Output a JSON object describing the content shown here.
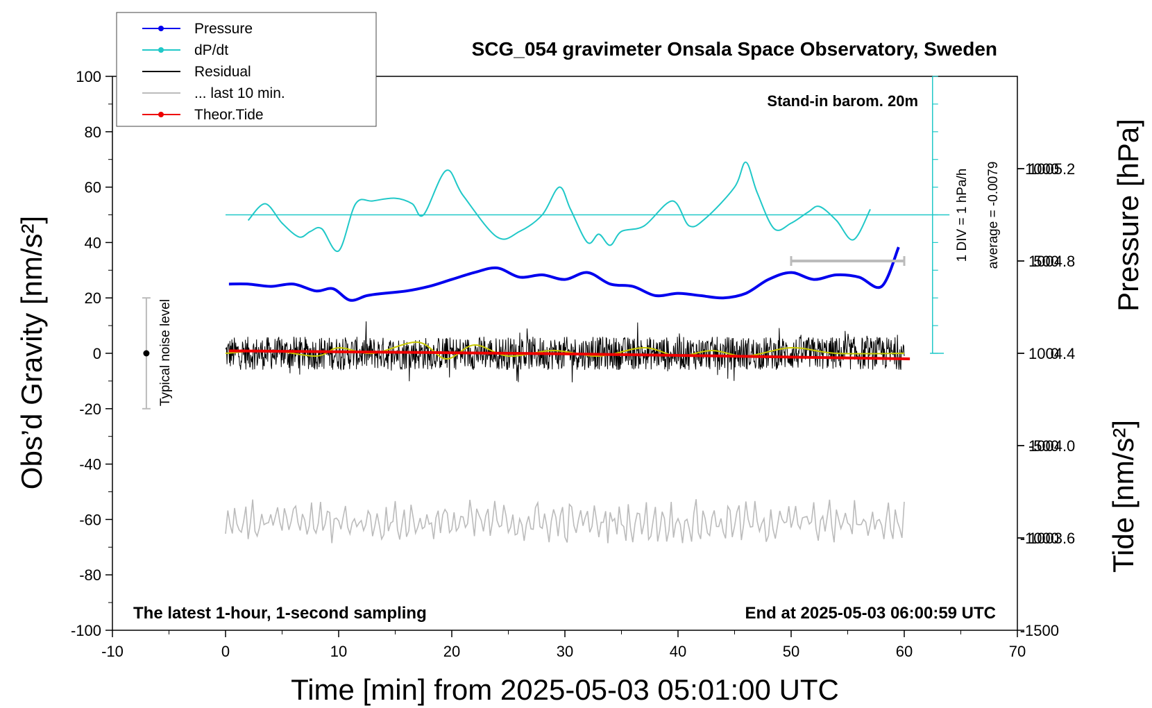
{
  "chart_data": {
    "type": "line",
    "title": "SCG_054 gravimeter Onsala Space Observatory, Sweden",
    "note_top_right": "Stand-in barom. 20m",
    "note_bottom_left": "The latest 1-hour, 1-second sampling",
    "note_bottom_right": "End at 2025-05-03 06:00:59 UTC",
    "xlabel": "Time [min] from 2025-05-03 05:01:00 UTC",
    "ylabel": "Obs’d Gravity [nm/s²]",
    "ylabel_right_top": "Pressure [hPa]",
    "ylabel_right_bottom": "Tide [nm/s²]",
    "xlim": [
      -10,
      70
    ],
    "ylim": [
      -100,
      100
    ],
    "pressure_lim": [
      1003.2,
      1005.6
    ],
    "tide_lim": [
      -1500,
      1500
    ],
    "x_ticks": [
      "-10",
      "0",
      "10",
      "20",
      "30",
      "40",
      "50",
      "60",
      "70"
    ],
    "y_ticks": [
      "-100",
      "-80",
      "-60",
      "-40",
      "-20",
      "0",
      "20",
      "40",
      "60",
      "80",
      "100"
    ],
    "pressure_ticks": [
      "1003.6",
      "1004.0",
      "1004.4",
      "1004.8",
      "1005.2"
    ],
    "tide_ticks": [
      "-1500",
      "-1000",
      "-500",
      "0",
      "500",
      "1000"
    ],
    "dpdt_scale_label": "1 DIV = 1 hPa/h",
    "dpdt_average_label": "average = -0.0079",
    "noise_label": "Typical noise level",
    "legend": {
      "position": "top-left",
      "entries": [
        {
          "name": "Pressure",
          "color": "#0000ee",
          "marker": true
        },
        {
          "name": "dP/dt",
          "color": "#20c8c8",
          "marker": true
        },
        {
          "name": "Residual",
          "color": "#000000",
          "marker": false
        },
        {
          "name": "... last 10 min.",
          "color": "#bbbbbb",
          "marker": false
        },
        {
          "name": "Theor.Tide",
          "color": "#ee0000",
          "marker": true
        }
      ]
    },
    "series": [
      {
        "name": "Pressure",
        "color": "#0000ee",
        "axis": "pressure",
        "x": [
          0.3,
          2,
          4,
          6,
          8,
          9.5,
          11,
          12.5,
          14,
          16,
          18,
          20,
          22,
          24,
          26,
          28,
          30,
          32,
          34,
          36,
          38,
          40,
          42,
          44,
          46,
          48,
          50,
          52,
          54,
          56,
          58,
          59.5
        ],
        "y": [
          1004.7,
          1004.7,
          1004.69,
          1004.7,
          1004.67,
          1004.68,
          1004.63,
          1004.65,
          1004.66,
          1004.67,
          1004.69,
          1004.72,
          1004.75,
          1004.77,
          1004.73,
          1004.74,
          1004.72,
          1004.75,
          1004.7,
          1004.69,
          1004.65,
          1004.66,
          1004.65,
          1004.64,
          1004.66,
          1004.72,
          1004.75,
          1004.72,
          1004.74,
          1004.73,
          1004.69,
          1004.86
        ]
      },
      {
        "name": "dP/dt",
        "color": "#20c8c8",
        "axis": "gravity",
        "x": [
          2,
          3.5,
          5,
          6.5,
          7.5,
          8.5,
          10,
          11.5,
          13,
          15,
          16.5,
          17.5,
          19.5,
          21,
          24,
          26,
          28,
          29.5,
          30.5,
          32,
          33,
          34,
          35,
          37,
          39.5,
          41,
          42.5,
          45,
          46,
          47,
          48.5,
          50,
          51.5,
          52.5,
          54,
          55.5,
          57
        ],
        "y": [
          48,
          54,
          47,
          42,
          44,
          45,
          37,
          54,
          55,
          56,
          54,
          50,
          66,
          57,
          42,
          44,
          50,
          60,
          52,
          40,
          43,
          39,
          44,
          46,
          55,
          46,
          49,
          60,
          69,
          58,
          45,
          47,
          51,
          53,
          48,
          41,
          52
        ]
      },
      {
        "name": "Residual",
        "color": "#000000",
        "axis": "gravity",
        "x_range": [
          0,
          60
        ],
        "amplitude": 6
      },
      {
        "name": "Residual smoothed",
        "color": "#c8c800",
        "axis": "gravity",
        "x": [
          0,
          4,
          8,
          10,
          13,
          17,
          19.5,
          22,
          25,
          29,
          33,
          37,
          40,
          43,
          46,
          50,
          54,
          60
        ],
        "y": [
          0,
          1,
          -1,
          2,
          0,
          4,
          -2,
          3,
          -1,
          1,
          -1,
          2,
          -1,
          1,
          -1,
          2,
          0,
          0
        ]
      },
      {
        "name": "... last 10 min.",
        "color": "#bbbbbb",
        "axis": "gravity",
        "x_range": [
          0,
          60
        ],
        "center": -61,
        "amplitude": 7
      },
      {
        "name": "Theor.Tide",
        "color": "#ee0000",
        "axis": "tide",
        "x": [
          0.3,
          30,
          60.5
        ],
        "y": [
          13,
          -3,
          -30
        ]
      }
    ],
    "noise_bar": {
      "x": -7,
      "ylim": [
        -20,
        20
      ]
    },
    "ten_minute_bar": {
      "x": [
        50,
        60
      ],
      "tide": 500
    },
    "dpdt_reference_line": 50
  }
}
